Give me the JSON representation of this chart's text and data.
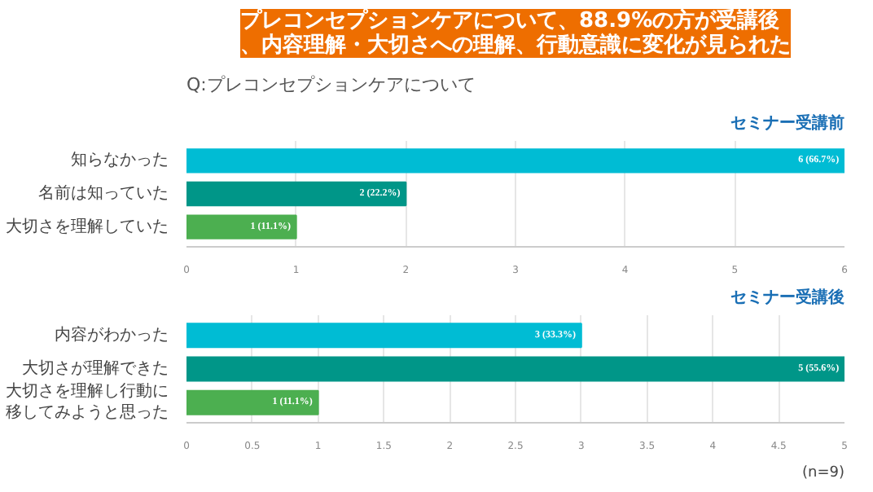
{
  "chart_data": [
    {
      "type": "bar",
      "orientation": "horizontal",
      "title": "プレコンセプションケアについて、88.9%の方が受講後、内容理解・大切さへの理解、行動意識に変化が見られた",
      "subtitle": "Q:プレコンセプションケアについて",
      "annotations": [
        "セミナー受講前"
      ],
      "categories": [
        "知らなかった",
        "名前は知っていた",
        "大切さを理解していた"
      ],
      "values": [
        6,
        2,
        1
      ],
      "colors": [
        "#00bcd4",
        "#009688",
        "#4caf50"
      ],
      "value_labels": [
        "6 (66.7%)",
        "2 (22.2%)",
        "1 (11.1%)"
      ],
      "xlim": [
        0,
        6
      ],
      "xticks": [
        0,
        1,
        2,
        3,
        4,
        5,
        6
      ],
      "grid": "x"
    },
    {
      "type": "bar",
      "orientation": "horizontal",
      "title": "セミナー受講後",
      "annotations": [
        "(n=9)"
      ],
      "categories": [
        "内容がわかった",
        "大切さが理解できた",
        "大切さを理解し行動に移してみようと思った"
      ],
      "values": [
        3,
        5,
        1
      ],
      "colors": [
        "#00bcd4",
        "#009688",
        "#4caf50"
      ],
      "value_labels": [
        "3 (33.3%)",
        "5 (55.6%)",
        "1 (11.1%)"
      ],
      "xlim": [
        0,
        5
      ],
      "xticks": [
        0,
        0.5,
        1,
        1.5,
        2,
        2.5,
        3,
        3.5,
        4,
        4.5,
        5
      ],
      "grid": "x"
    }
  ]
}
